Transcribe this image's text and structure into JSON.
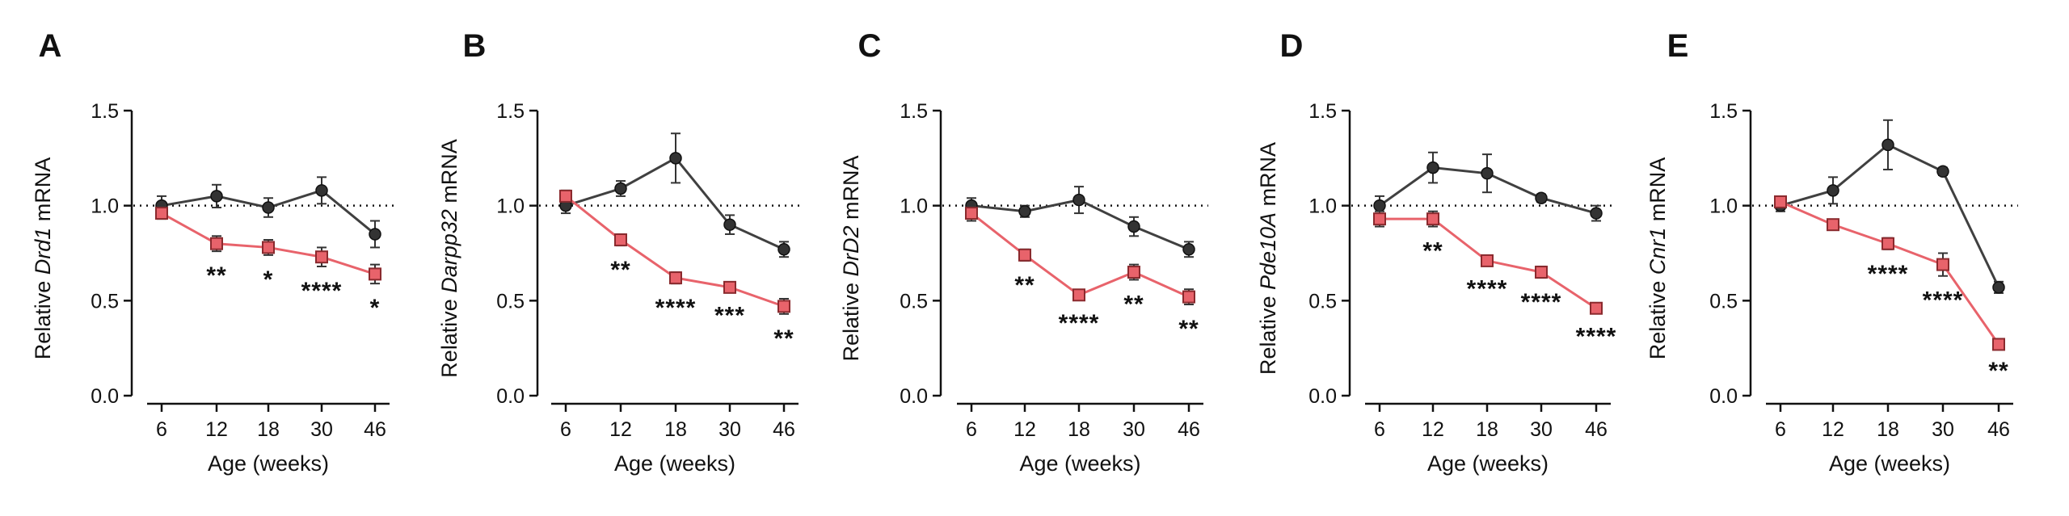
{
  "colors": {
    "control_line": "#404040",
    "control_point": "#333333",
    "mutant_line": "#e8636b",
    "mutant_point": "#e8636b",
    "mutant_point_stroke": "#8a2a2e"
  },
  "chart_data": [
    {
      "type": "line",
      "panel_label": "A",
      "xlabel": "Age (weeks)",
      "ylabel_prefix": "Relative ",
      "ylabel_gene": "Drd1",
      "ylabel_suffix": " mRNA",
      "categories": [
        "6",
        "12",
        "18",
        "30",
        "46"
      ],
      "ylim": [
        0,
        1.5
      ],
      "yticks": [
        "0.0",
        "0.5",
        "1.0",
        "1.5"
      ],
      "reference_line": 1.0,
      "series": [
        {
          "marker": "circle",
          "values": [
            1.0,
            1.05,
            0.99,
            1.08,
            0.85
          ],
          "errors": [
            0.05,
            0.06,
            0.05,
            0.07,
            0.07
          ]
        },
        {
          "marker": "square",
          "values": [
            0.96,
            0.8,
            0.78,
            0.73,
            0.64
          ],
          "errors": [
            0.03,
            0.04,
            0.04,
            0.05,
            0.05
          ]
        }
      ],
      "significance": [
        "",
        "**",
        "*",
        "****",
        "*"
      ]
    },
    {
      "type": "line",
      "panel_label": "B",
      "xlabel": "Age (weeks)",
      "ylabel_prefix": "Relative ",
      "ylabel_gene": "Darpp32",
      "ylabel_suffix": " mRNA",
      "categories": [
        "6",
        "12",
        "18",
        "30",
        "46"
      ],
      "ylim": [
        0,
        1.5
      ],
      "yticks": [
        "0.0",
        "0.5",
        "1.0",
        "1.5"
      ],
      "reference_line": 1.0,
      "series": [
        {
          "marker": "circle",
          "values": [
            1.0,
            1.09,
            1.25,
            0.9,
            0.77
          ],
          "errors": [
            0.04,
            0.04,
            0.13,
            0.05,
            0.04
          ]
        },
        {
          "marker": "square",
          "values": [
            1.05,
            0.82,
            0.62,
            0.57,
            0.47
          ],
          "errors": [
            0.03,
            0.03,
            0.03,
            0.02,
            0.04
          ]
        }
      ],
      "significance": [
        "",
        "**",
        "****",
        "***",
        "**"
      ]
    },
    {
      "type": "line",
      "panel_label": "C",
      "xlabel": "Age (weeks)",
      "ylabel_prefix": "Relative ",
      "ylabel_gene": "DrD2",
      "ylabel_suffix": " mRNA",
      "categories": [
        "6",
        "12",
        "18",
        "30",
        "46"
      ],
      "ylim": [
        0,
        1.5
      ],
      "yticks": [
        "0.0",
        "0.5",
        "1.0",
        "1.5"
      ],
      "reference_line": 1.0,
      "series": [
        {
          "marker": "circle",
          "values": [
            1.0,
            0.97,
            1.03,
            0.89,
            0.77
          ],
          "errors": [
            0.04,
            0.03,
            0.07,
            0.05,
            0.04
          ]
        },
        {
          "marker": "square",
          "values": [
            0.96,
            0.74,
            0.53,
            0.65,
            0.52
          ],
          "errors": [
            0.04,
            0.03,
            0.02,
            0.04,
            0.04
          ]
        }
      ],
      "significance": [
        "",
        "**",
        "****",
        "**",
        "**"
      ]
    },
    {
      "type": "line",
      "panel_label": "D",
      "xlabel": "Age (weeks)",
      "ylabel_prefix": "Relative ",
      "ylabel_gene": "Pde10A",
      "ylabel_suffix": " mRNA",
      "categories": [
        "6",
        "12",
        "18",
        "30",
        "46"
      ],
      "ylim": [
        0,
        1.5
      ],
      "yticks": [
        "0.0",
        "0.5",
        "1.0",
        "1.5"
      ],
      "reference_line": 1.0,
      "series": [
        {
          "marker": "circle",
          "values": [
            1.0,
            1.2,
            1.17,
            1.04,
            0.96
          ],
          "errors": [
            0.05,
            0.08,
            0.1,
            0.02,
            0.04
          ]
        },
        {
          "marker": "square",
          "values": [
            0.93,
            0.93,
            0.71,
            0.65,
            0.46
          ],
          "errors": [
            0.04,
            0.04,
            0.02,
            0.03,
            0.02
          ]
        }
      ],
      "significance": [
        "",
        "**",
        "****",
        "****",
        "****"
      ]
    },
    {
      "type": "line",
      "panel_label": "E",
      "xlabel": "Age (weeks)",
      "ylabel_prefix": "Relative ",
      "ylabel_gene": "Cnr1",
      "ylabel_suffix": " mRNA",
      "categories": [
        "6",
        "12",
        "18",
        "30",
        "46"
      ],
      "ylim": [
        0,
        1.5
      ],
      "yticks": [
        "0.0",
        "0.5",
        "1.0",
        "1.5"
      ],
      "reference_line": 1.0,
      "series": [
        {
          "marker": "circle",
          "values": [
            1.0,
            1.08,
            1.32,
            1.18,
            0.57
          ],
          "errors": [
            0.03,
            0.07,
            0.13,
            0.02,
            0.03
          ]
        },
        {
          "marker": "square",
          "values": [
            1.02,
            0.9,
            0.8,
            0.69,
            0.27
          ],
          "errors": [
            0.02,
            0.02,
            0.03,
            0.06,
            0.01
          ]
        }
      ],
      "significance": [
        "",
        "",
        "****",
        "****",
        "**"
      ]
    }
  ]
}
